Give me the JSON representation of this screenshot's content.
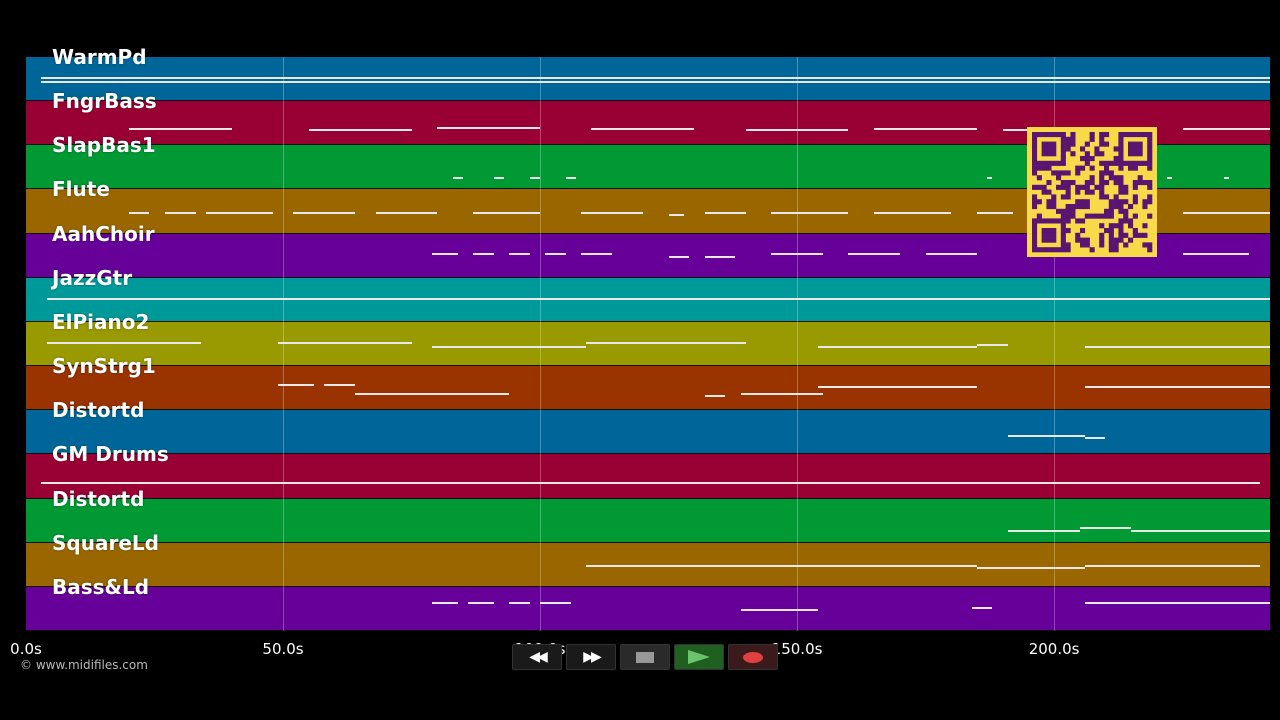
{
  "timeline": {
    "max_seconds": 242,
    "ticks": [
      {
        "value": 0,
        "label": "0.0s"
      },
      {
        "value": 50,
        "label": "50.0s"
      },
      {
        "value": 100,
        "label": "100.0s"
      },
      {
        "value": 150,
        "label": "150.0s"
      },
      {
        "value": 200,
        "label": "200.0s"
      }
    ]
  },
  "tracks": [
    {
      "name": "WarmPd",
      "color": "#006699",
      "notes": [
        [
          3,
          242,
          0.45
        ],
        [
          3,
          242,
          0.55
        ]
      ]
    },
    {
      "name": "FngrBass",
      "color": "#990033",
      "notes": [
        [
          20,
          40,
          0.6
        ],
        [
          55,
          75,
          0.62
        ],
        [
          80,
          100,
          0.58
        ],
        [
          110,
          130,
          0.6
        ],
        [
          140,
          160,
          0.62
        ],
        [
          165,
          185,
          0.6
        ],
        [
          190,
          205,
          0.62
        ],
        [
          225,
          242,
          0.6
        ]
      ]
    },
    {
      "name": "SlapBas1",
      "color": "#009933",
      "notes": [
        [
          83,
          85,
          0.72
        ],
        [
          91,
          93,
          0.72
        ],
        [
          98,
          100,
          0.72
        ],
        [
          105,
          107,
          0.72
        ],
        [
          187,
          188,
          0.72
        ],
        [
          222,
          223,
          0.72
        ],
        [
          233,
          234,
          0.72
        ]
      ]
    },
    {
      "name": "Flute",
      "color": "#996600",
      "notes": [
        [
          20,
          24,
          0.5
        ],
        [
          27,
          33,
          0.5
        ],
        [
          35,
          48,
          0.5
        ],
        [
          52,
          64,
          0.5
        ],
        [
          68,
          80,
          0.5
        ],
        [
          87,
          100,
          0.5
        ],
        [
          108,
          120,
          0.5
        ],
        [
          125,
          128,
          0.55
        ],
        [
          132,
          140,
          0.5
        ],
        [
          145,
          160,
          0.5
        ],
        [
          165,
          180,
          0.5
        ],
        [
          185,
          192,
          0.5
        ],
        [
          225,
          242,
          0.5
        ]
      ]
    },
    {
      "name": "AahChoir",
      "color": "#660099",
      "notes": [
        [
          79,
          84,
          0.45
        ],
        [
          87,
          91,
          0.45
        ],
        [
          94,
          98,
          0.45
        ],
        [
          101,
          105,
          0.45
        ],
        [
          108,
          114,
          0.45
        ],
        [
          125,
          129,
          0.5
        ],
        [
          132,
          138,
          0.5
        ],
        [
          145,
          155,
          0.45
        ],
        [
          160,
          170,
          0.45
        ],
        [
          175,
          185,
          0.45
        ],
        [
          225,
          238,
          0.45
        ]
      ]
    },
    {
      "name": "JazzGtr",
      "color": "#009999",
      "notes": [
        [
          4,
          45,
          0.45
        ],
        [
          45,
          76,
          0.45
        ],
        [
          76,
          152,
          0.45
        ],
        [
          152,
          242,
          0.45
        ]
      ]
    },
    {
      "name": "ElPiano2",
      "color": "#999900",
      "notes": [
        [
          4,
          34,
          0.45
        ],
        [
          49,
          75,
          0.45
        ],
        [
          79,
          109,
          0.55
        ],
        [
          109,
          140,
          0.45
        ],
        [
          154,
          185,
          0.55
        ],
        [
          185,
          191,
          0.5
        ],
        [
          206,
          242,
          0.55
        ]
      ]
    },
    {
      "name": "SynStrg1",
      "color": "#993300",
      "notes": [
        [
          49,
          56,
          0.4
        ],
        [
          58,
          64,
          0.4
        ],
        [
          64,
          94,
          0.6
        ],
        [
          132,
          136,
          0.65
        ],
        [
          139,
          155,
          0.6
        ],
        [
          154,
          185,
          0.45
        ],
        [
          206,
          242,
          0.45
        ]
      ]
    },
    {
      "name": "Distortd",
      "color": "#006699",
      "notes": [
        [
          191,
          206,
          0.55
        ],
        [
          206,
          210,
          0.6
        ]
      ]
    },
    {
      "name": "GM Drums",
      "color": "#990033",
      "notes": [
        [
          3,
          240,
          0.62
        ]
      ]
    },
    {
      "name": "Distortd",
      "color": "#009933",
      "notes": [
        [
          191,
          205,
          0.72
        ],
        [
          205,
          215,
          0.65
        ],
        [
          215,
          242,
          0.72
        ]
      ]
    },
    {
      "name": "SquareLd",
      "color": "#996600",
      "notes": [
        [
          109,
          185,
          0.5
        ],
        [
          185,
          206,
          0.55
        ],
        [
          206,
          240,
          0.5
        ]
      ]
    },
    {
      "name": "Bass&Ld",
      "color": "#660099",
      "notes": [
        [
          79,
          84,
          0.35
        ],
        [
          86,
          91,
          0.35
        ],
        [
          94,
          98,
          0.35
        ],
        [
          100,
          106,
          0.35
        ],
        [
          139,
          154,
          0.5
        ],
        [
          184,
          188,
          0.45
        ],
        [
          206,
          242,
          0.35
        ]
      ]
    }
  ],
  "footer": {
    "copyright": "© www.midifiles.com"
  },
  "transport": {
    "rewind_icon": "rewind-icon",
    "forward_icon": "fast-forward-icon",
    "stop_icon": "stop-icon",
    "play_icon": "play-icon",
    "record_icon": "record-icon",
    "rewind_glyph": "◀◀",
    "forward_glyph": "▶▶"
  }
}
